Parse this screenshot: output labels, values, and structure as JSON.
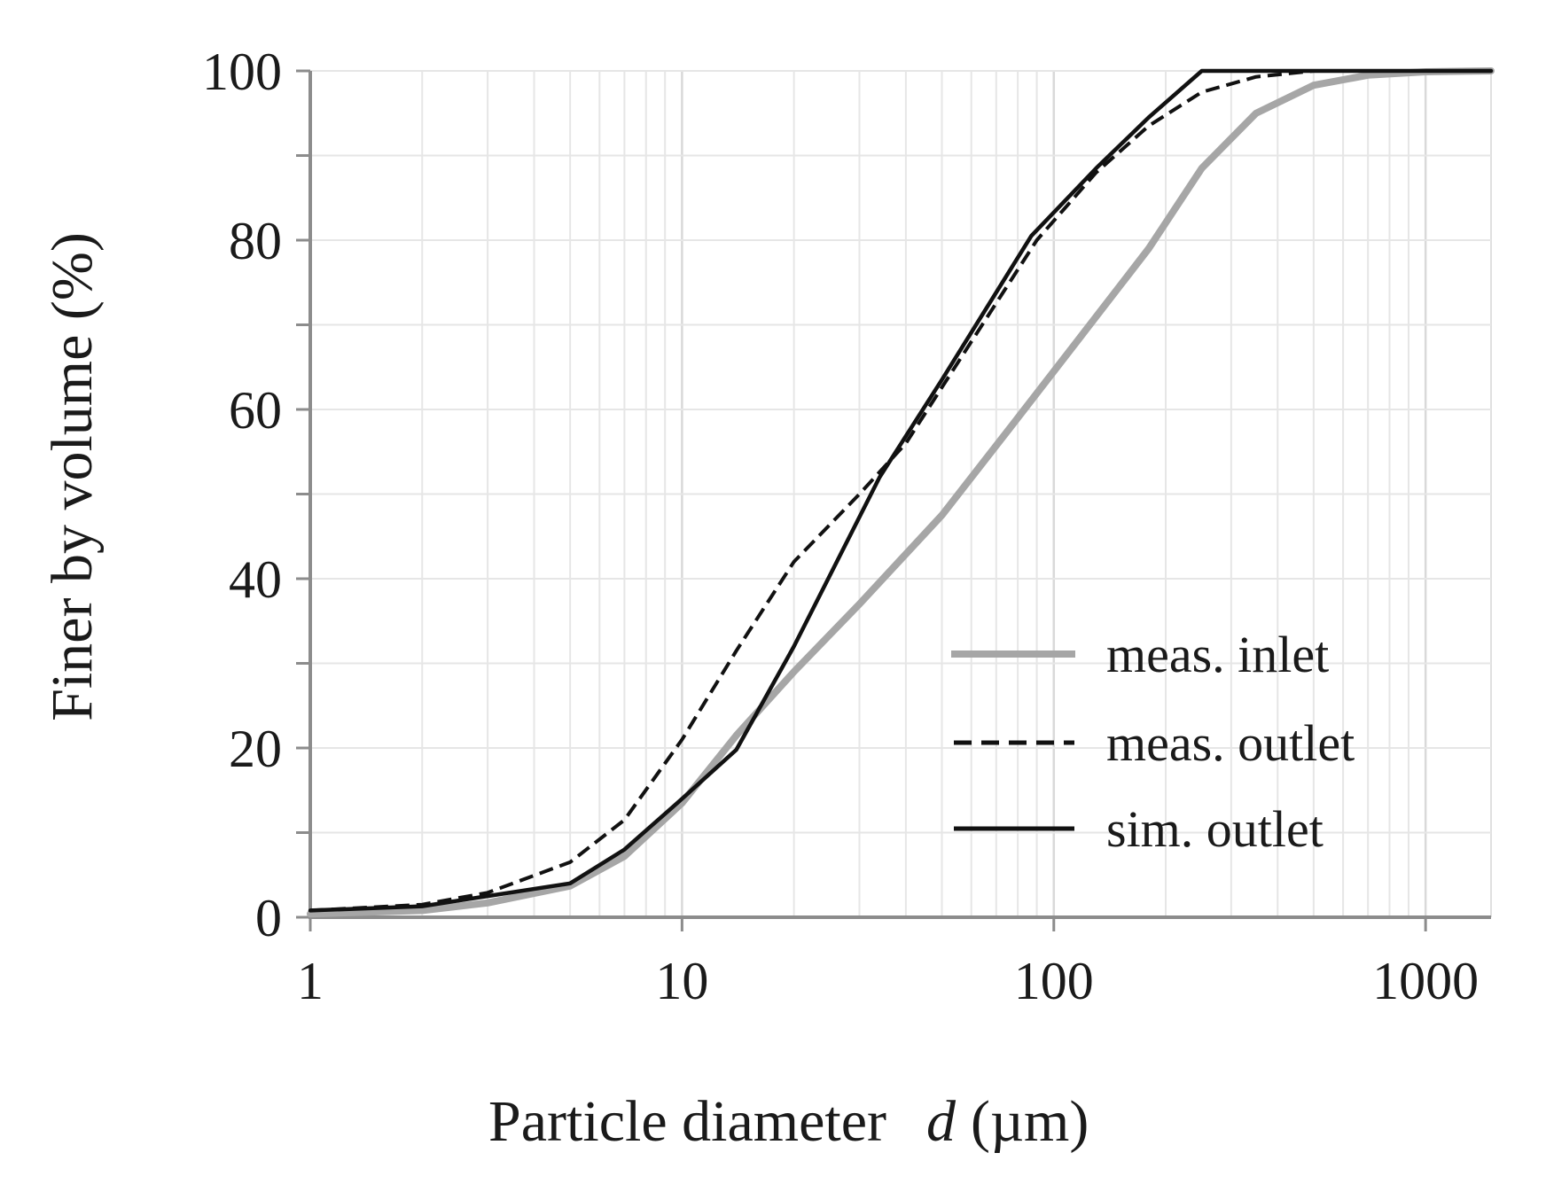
{
  "chart_data": {
    "type": "line",
    "title": "",
    "xlabel": "Particle diameter",
    "xlabel_symbol": "d",
    "xlabel_unit": "(µm)",
    "ylabel": "Finer by volume (%)",
    "xscale": "log",
    "xlim": [
      1,
      1500
    ],
    "ylim": [
      0,
      100
    ],
    "x_ticks": [
      1,
      10,
      100,
      1000
    ],
    "x_tick_labels": [
      "1",
      "10",
      "100",
      "1000"
    ],
    "y_ticks": [
      0,
      20,
      40,
      60,
      80,
      100
    ],
    "y_tick_labels": [
      "0",
      "20",
      "40",
      "60",
      "80",
      "100"
    ],
    "y_minor_step": 10,
    "grid": true,
    "legend_position": "lower-right",
    "series": [
      {
        "name": "meas. inlet",
        "style": "solid-thick",
        "color": "#a6a6a6",
        "x": [
          1,
          2,
          3,
          5,
          7,
          10,
          14,
          20,
          30,
          50,
          80,
          120,
          180,
          250,
          350,
          500,
          700,
          1000,
          1500
        ],
        "y": [
          0.4,
          0.8,
          1.7,
          3.7,
          7.2,
          13.5,
          21.5,
          29,
          37,
          47.5,
          59,
          69,
          79,
          88.5,
          95,
          98.3,
          99.5,
          99.9,
          100
        ]
      },
      {
        "name": "meas. outlet",
        "style": "dashed",
        "color": "#111111",
        "x": [
          1,
          2,
          3,
          5,
          7,
          10,
          14,
          20,
          30,
          40,
          60,
          90,
          130,
          180,
          250,
          350,
          500,
          1000,
          1500
        ],
        "y": [
          0.8,
          1.5,
          2.9,
          6.5,
          11.5,
          21,
          31.5,
          42,
          50,
          56,
          68,
          80,
          88,
          93.5,
          97.5,
          99.3,
          100,
          100,
          100
        ]
      },
      {
        "name": "sim. outlet",
        "style": "solid",
        "color": "#111111",
        "x": [
          1,
          2,
          3,
          5,
          7,
          10,
          14,
          20,
          34,
          50,
          87,
          130,
          180,
          250,
          350,
          1000,
          1500
        ],
        "y": [
          0.8,
          1.3,
          2.5,
          4,
          8,
          14,
          19.8,
          32,
          52,
          63.5,
          80.5,
          88.5,
          94.5,
          100,
          100,
          100,
          100
        ]
      }
    ]
  }
}
